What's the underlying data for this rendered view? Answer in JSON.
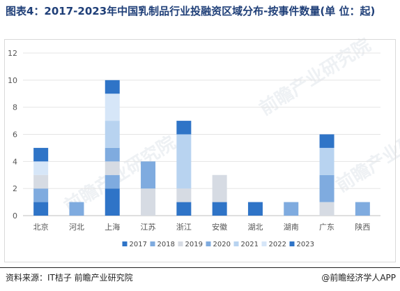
{
  "title": "图表4：2017-2023年中国乳制品行业投融资区域分布-按事件数量(单 位：起)",
  "source": "资料来源：IT桔子 前瞻产业研究院",
  "brand": "@前瞻经济学人APP",
  "watermark": "前瞻产业研究院",
  "colors": {
    "2017": "#2f74c7",
    "2018": "#7fabdf",
    "2019": "#d6dbe3",
    "2020": "#7fabdf",
    "2021": "#b8d3f0",
    "2022": "#d6e6f8",
    "2023": "#2f74c7"
  },
  "chart_data": {
    "type": "bar",
    "stacked": true,
    "categories": [
      "北京",
      "河北",
      "上海",
      "江苏",
      "浙江",
      "安徽",
      "湖北",
      "湖南",
      "广东",
      "陕西"
    ],
    "series": [
      {
        "name": "2017",
        "values": [
          1,
          0,
          2,
          0,
          1,
          1,
          1,
          0,
          0,
          0
        ]
      },
      {
        "name": "2018",
        "values": [
          1,
          1,
          1,
          0,
          0,
          0,
          0,
          1,
          0,
          1
        ]
      },
      {
        "name": "2019",
        "values": [
          1,
          0,
          1,
          2,
          1,
          2,
          0,
          0,
          1,
          0
        ]
      },
      {
        "name": "2020",
        "values": [
          0,
          0,
          1,
          2,
          0,
          0,
          0,
          0,
          2,
          0
        ]
      },
      {
        "name": "2021",
        "values": [
          0,
          0,
          2,
          0,
          4,
          0,
          0,
          0,
          2,
          0
        ]
      },
      {
        "name": "2022",
        "values": [
          1,
          0,
          2,
          0,
          0,
          0,
          0,
          0,
          0,
          0
        ]
      },
      {
        "name": "2023",
        "values": [
          1,
          0,
          1,
          0,
          1,
          0,
          0,
          0,
          1,
          0
        ]
      }
    ],
    "ylim": [
      0,
      12
    ],
    "yticks": [
      0,
      2,
      4,
      6,
      8,
      10,
      12
    ],
    "grid": true,
    "legend": "bottom"
  }
}
